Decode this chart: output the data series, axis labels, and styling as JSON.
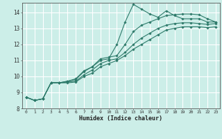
{
  "xlabel": "Humidex (Indice chaleur)",
  "ylabel": "",
  "background_color": "#cceee8",
  "grid_color": "#ffffff",
  "line_color": "#2d7a6a",
  "xlim": [
    -0.5,
    23.5
  ],
  "ylim": [
    8,
    14.6
  ],
  "xticks": [
    0,
    1,
    2,
    3,
    4,
    5,
    6,
    7,
    8,
    9,
    10,
    11,
    12,
    13,
    14,
    15,
    16,
    17,
    18,
    19,
    20,
    21,
    22,
    23
  ],
  "yticks": [
    8,
    9,
    10,
    11,
    12,
    13,
    14
  ],
  "series": [
    [
      8.7,
      8.5,
      8.6,
      9.6,
      9.6,
      9.7,
      9.8,
      10.3,
      10.6,
      11.0,
      11.1,
      12.0,
      13.4,
      14.5,
      14.2,
      13.9,
      13.7,
      14.1,
      13.8,
      13.6,
      13.6,
      13.6,
      13.4,
      13.4
    ],
    [
      8.7,
      8.5,
      8.6,
      9.6,
      9.6,
      9.7,
      9.85,
      10.35,
      10.6,
      11.1,
      11.2,
      11.3,
      12.0,
      12.8,
      13.2,
      13.4,
      13.6,
      13.8,
      13.85,
      13.9,
      13.9,
      13.85,
      13.6,
      13.4
    ],
    [
      8.7,
      8.5,
      8.6,
      9.6,
      9.6,
      9.65,
      9.7,
      10.1,
      10.4,
      10.8,
      11.0,
      11.1,
      11.5,
      12.0,
      12.4,
      12.7,
      13.0,
      13.2,
      13.3,
      13.35,
      13.35,
      13.3,
      13.25,
      13.3
    ],
    [
      8.7,
      8.5,
      8.6,
      9.6,
      9.6,
      9.6,
      9.65,
      10.0,
      10.2,
      10.6,
      10.8,
      11.0,
      11.3,
      11.7,
      12.0,
      12.3,
      12.6,
      12.9,
      13.0,
      13.1,
      13.1,
      13.1,
      13.05,
      13.1
    ]
  ]
}
